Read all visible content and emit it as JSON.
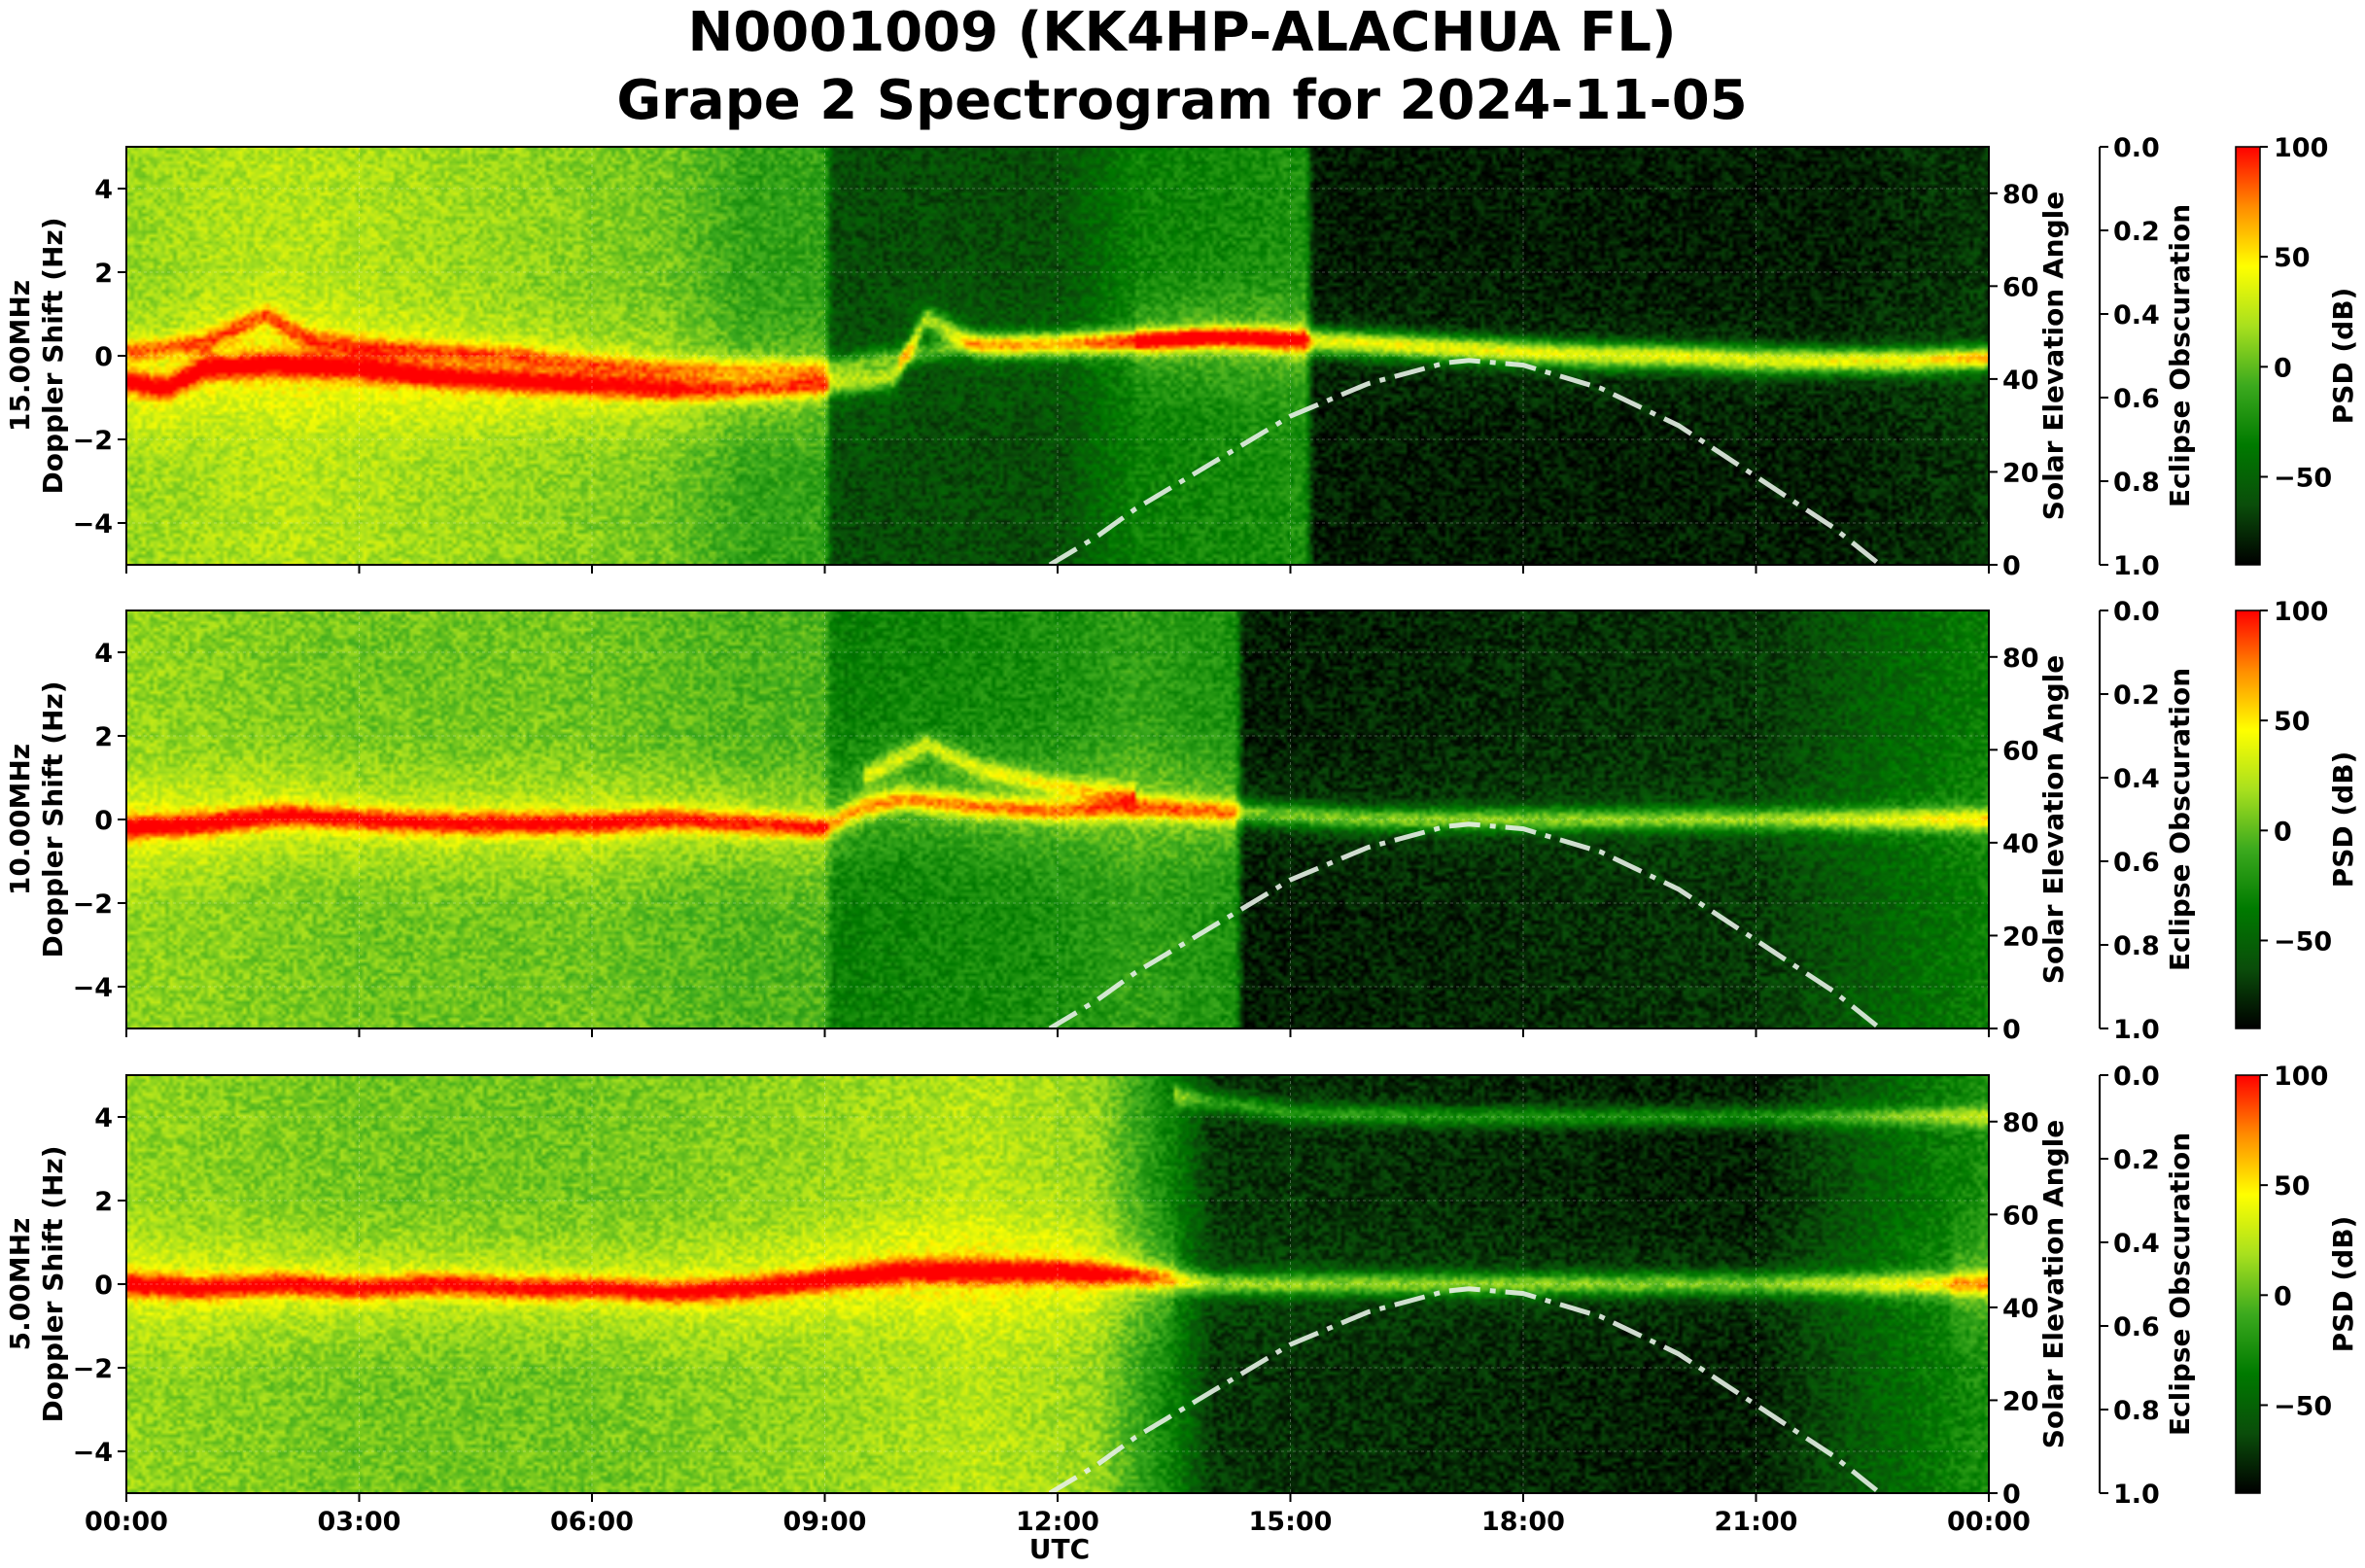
{
  "figure": {
    "title_line1": "N0001009 (KK4HP-ALACHUA FL)",
    "title_line2": "Grape 2 Spectrogram for 2024-11-05",
    "xlabel": "UTC",
    "x_tick_labels": [
      "00:00",
      "03:00",
      "06:00",
      "09:00",
      "12:00",
      "15:00",
      "18:00",
      "21:00",
      "00:00"
    ]
  },
  "chart_data": [
    {
      "type": "heatmap",
      "frequency_label": "15.00MHz",
      "ylabel": "Doppler Shift (Hz)",
      "ylim": [
        -5,
        5
      ],
      "y_ticks": [
        -4,
        -2,
        0,
        2,
        4
      ],
      "xlim_hours": [
        0,
        24
      ],
      "right_axis": {
        "label": "Solar Elevation Angle",
        "ylim": [
          0,
          90
        ],
        "ticks": [
          0,
          20,
          40,
          60,
          80
        ]
      },
      "eclipse_axis": {
        "label": "Eclipse Obscuration",
        "ylim": [
          1.0,
          0.0
        ],
        "ticks": [
          "0.0",
          "0.2",
          "0.4",
          "0.6",
          "0.8",
          "1.0"
        ]
      },
      "colorbar": {
        "label": "PSD (dB)",
        "range": [
          -90,
          100
        ],
        "ticks": [
          100,
          50,
          0,
          -50
        ],
        "tick_labels": [
          "100",
          "50",
          "0",
          "−50"
        ]
      },
      "grid": true,
      "background_trace": [
        [
          0,
          -0.6
        ],
        [
          0.5,
          -0.8
        ],
        [
          1,
          -0.3
        ],
        [
          2,
          -0.2
        ],
        [
          3,
          -0.3
        ],
        [
          4,
          -0.5
        ],
        [
          5,
          -0.6
        ],
        [
          6,
          -0.7
        ],
        [
          7,
          -0.8
        ],
        [
          8,
          -0.8
        ],
        [
          9,
          -0.7
        ],
        [
          9.9,
          -0.5
        ],
        [
          10.3,
          0.9
        ],
        [
          10.7,
          0.5
        ],
        [
          11,
          0.2
        ],
        [
          12,
          0.2
        ],
        [
          13,
          0.3
        ],
        [
          14,
          0.4
        ],
        [
          15,
          0.3
        ],
        [
          16,
          0.2
        ],
        [
          17,
          0.1
        ],
        [
          18,
          0.0
        ],
        [
          19,
          -0.1
        ],
        [
          20,
          -0.1
        ],
        [
          21,
          -0.2
        ],
        [
          22,
          -0.2
        ],
        [
          23,
          -0.2
        ],
        [
          24,
          -0.1
        ]
      ],
      "background_trace_2": [
        [
          0,
          0.1
        ],
        [
          1,
          0.3
        ],
        [
          1.8,
          1.0
        ],
        [
          2.3,
          0.4
        ],
        [
          3,
          0.2
        ],
        [
          4,
          0.1
        ],
        [
          5,
          0.0
        ],
        [
          6,
          -0.2
        ],
        [
          7,
          -0.3
        ],
        [
          9,
          -0.3
        ],
        [
          10,
          0.0
        ],
        [
          11,
          0.3
        ],
        [
          12,
          0.4
        ],
        [
          13,
          0.4
        ],
        [
          14,
          0.5
        ],
        [
          15,
          0.5
        ],
        [
          16,
          0.4
        ],
        [
          17,
          0.3
        ],
        [
          18,
          0.2
        ],
        [
          20,
          0.1
        ],
        [
          22,
          0.0
        ],
        [
          24,
          0.0
        ]
      ],
      "brightness_profile": [
        [
          0,
          0.55
        ],
        [
          2,
          0.6
        ],
        [
          5,
          0.55
        ],
        [
          7,
          0.5
        ],
        [
          8,
          0.4
        ],
        [
          9,
          0.4
        ],
        [
          9.1,
          0.15
        ],
        [
          12,
          0.15
        ],
        [
          13,
          0.3
        ],
        [
          15.2,
          0.35
        ],
        [
          15.3,
          0.05
        ],
        [
          22,
          0.05
        ],
        [
          24,
          0.1
        ]
      ],
      "solar_elevation": [
        [
          11.9,
          0
        ],
        [
          12.5,
          6
        ],
        [
          13,
          12
        ],
        [
          14,
          22
        ],
        [
          15,
          32
        ],
        [
          16,
          39
        ],
        [
          17,
          43.5
        ],
        [
          17.3,
          44
        ],
        [
          18,
          43
        ],
        [
          19,
          38
        ],
        [
          20,
          30
        ],
        [
          21,
          19
        ],
        [
          22,
          8
        ],
        [
          22.6,
          0
        ]
      ]
    },
    {
      "type": "heatmap",
      "frequency_label": "10.00MHz",
      "ylabel": "Doppler Shift (Hz)",
      "ylim": [
        -5,
        5
      ],
      "y_ticks": [
        -4,
        -2,
        0,
        2,
        4
      ],
      "xlim_hours": [
        0,
        24
      ],
      "right_axis": {
        "label": "Solar Elevation Angle",
        "ylim": [
          0,
          90
        ],
        "ticks": [
          0,
          20,
          40,
          60,
          80
        ]
      },
      "eclipse_axis": {
        "label": "Eclipse Obscuration",
        "ylim": [
          1.0,
          0.0
        ],
        "ticks": [
          "0.0",
          "0.2",
          "0.4",
          "0.6",
          "0.8",
          "1.0"
        ]
      },
      "colorbar": {
        "label": "PSD (dB)",
        "range": [
          -90,
          100
        ],
        "ticks": [
          100,
          50,
          0,
          -50
        ],
        "tick_labels": [
          "100",
          "50",
          "0",
          "−50"
        ]
      },
      "grid": true,
      "background_trace": [
        [
          0,
          -0.2
        ],
        [
          1,
          -0.1
        ],
        [
          2,
          0.1
        ],
        [
          3,
          0.0
        ],
        [
          4,
          -0.1
        ],
        [
          5,
          -0.1
        ],
        [
          6,
          -0.1
        ],
        [
          7,
          0.0
        ],
        [
          8,
          -0.1
        ],
        [
          9,
          -0.2
        ],
        [
          9.5,
          0.3
        ],
        [
          10,
          0.5
        ],
        [
          11,
          0.3
        ],
        [
          12,
          0.2
        ],
        [
          13,
          0.3
        ],
        [
          14,
          0.2
        ],
        [
          15,
          0.1
        ],
        [
          16,
          0.0
        ],
        [
          18,
          0.0
        ],
        [
          20,
          0.0
        ],
        [
          22,
          0.0
        ],
        [
          24,
          0.0
        ]
      ],
      "background_trace_2": [
        [
          9.5,
          1.0
        ],
        [
          10.3,
          1.8
        ],
        [
          11,
          1.2
        ],
        [
          12,
          0.8
        ],
        [
          13,
          0.6
        ]
      ],
      "brightness_profile": [
        [
          0,
          0.55
        ],
        [
          3,
          0.5
        ],
        [
          6,
          0.5
        ],
        [
          8,
          0.45
        ],
        [
          9,
          0.45
        ],
        [
          9.1,
          0.3
        ],
        [
          12,
          0.35
        ],
        [
          13,
          0.4
        ],
        [
          14.3,
          0.35
        ],
        [
          14.4,
          0.05
        ],
        [
          21,
          0.1
        ],
        [
          24,
          0.3
        ]
      ],
      "solar_elevation": [
        [
          11.9,
          0
        ],
        [
          12.5,
          6
        ],
        [
          13,
          12
        ],
        [
          14,
          22
        ],
        [
          15,
          32
        ],
        [
          16,
          39
        ],
        [
          17,
          43.5
        ],
        [
          17.3,
          44
        ],
        [
          18,
          43
        ],
        [
          19,
          38
        ],
        [
          20,
          30
        ],
        [
          21,
          19
        ],
        [
          22,
          8
        ],
        [
          22.6,
          0
        ]
      ]
    },
    {
      "type": "heatmap",
      "frequency_label": "5.00MHz",
      "ylabel": "Doppler Shift (Hz)",
      "ylim": [
        -5,
        5
      ],
      "y_ticks": [
        -4,
        -2,
        0,
        2,
        4
      ],
      "xlim_hours": [
        0,
        24
      ],
      "right_axis": {
        "label": "Solar Elevation Angle",
        "ylim": [
          0,
          90
        ],
        "ticks": [
          0,
          20,
          40,
          60,
          80
        ]
      },
      "eclipse_axis": {
        "label": "Eclipse Obscuration",
        "ylim": [
          1.0,
          0.0
        ],
        "ticks": [
          "0.0",
          "0.2",
          "0.4",
          "0.6",
          "0.8",
          "1.0"
        ]
      },
      "colorbar": {
        "label": "PSD (dB)",
        "range": [
          -90,
          100
        ],
        "ticks": [
          100,
          50,
          0,
          -50
        ],
        "tick_labels": [
          "100",
          "50",
          "0",
          "−50"
        ]
      },
      "grid": true,
      "background_trace": [
        [
          0,
          0.0
        ],
        [
          1,
          -0.1
        ],
        [
          2,
          0.0
        ],
        [
          3,
          -0.1
        ],
        [
          4,
          0.0
        ],
        [
          5,
          -0.1
        ],
        [
          6,
          -0.1
        ],
        [
          7,
          -0.2
        ],
        [
          8,
          -0.1
        ],
        [
          9,
          0.1
        ],
        [
          10,
          0.3
        ],
        [
          11,
          0.3
        ],
        [
          12,
          0.3
        ],
        [
          13,
          0.2
        ],
        [
          14,
          0.0
        ],
        [
          16,
          0.0
        ],
        [
          20,
          0.0
        ],
        [
          24,
          0.0
        ]
      ],
      "background_trace_2": [
        [
          13.5,
          4.5
        ],
        [
          15,
          4.1
        ],
        [
          17,
          4.0
        ],
        [
          20,
          4.0
        ],
        [
          24,
          4.0
        ]
      ],
      "brightness_profile": [
        [
          0,
          0.55
        ],
        [
          3,
          0.5
        ],
        [
          6,
          0.5
        ],
        [
          9,
          0.55
        ],
        [
          11,
          0.6
        ],
        [
          12.5,
          0.55
        ],
        [
          13.5,
          0.3
        ],
        [
          14,
          0.1
        ],
        [
          21,
          0.05
        ],
        [
          22.5,
          0.2
        ],
        [
          24,
          0.35
        ]
      ],
      "solar_elevation": [
        [
          11.9,
          0
        ],
        [
          12.5,
          6
        ],
        [
          13,
          12
        ],
        [
          14,
          22
        ],
        [
          15,
          32
        ],
        [
          16,
          39
        ],
        [
          17,
          43.5
        ],
        [
          17.3,
          44
        ],
        [
          18,
          43
        ],
        [
          19,
          38
        ],
        [
          20,
          30
        ],
        [
          21,
          19
        ],
        [
          22,
          8
        ],
        [
          22.6,
          0
        ]
      ]
    }
  ],
  "colors": {
    "cmap": [
      "#000000",
      "#0a4d0a",
      "#007a00",
      "#3caa1e",
      "#a8e01e",
      "#ffff00",
      "#ff8c00",
      "#ff0000"
    ],
    "solar_curve": "#e6efe6",
    "grid": "#ffffff"
  }
}
